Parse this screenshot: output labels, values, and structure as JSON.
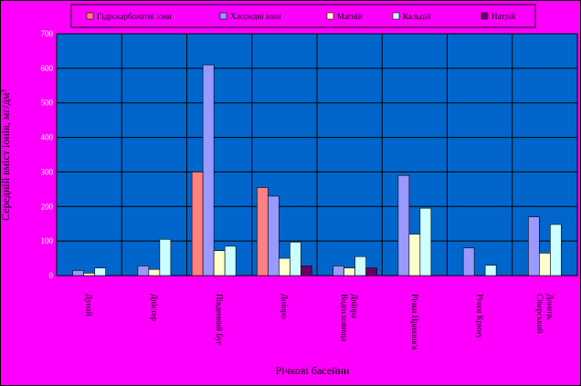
{
  "chart_data": {
    "type": "bar",
    "title": "",
    "xlabel": "Річкові басейни",
    "ylabel": "Середній вміст іонів, мг/дм³",
    "ylim": [
      0,
      700
    ],
    "yticks": [
      0,
      100,
      200,
      300,
      400,
      500,
      600,
      700
    ],
    "grid": true,
    "legend_position": "top",
    "categories": [
      [
        "Дунай"
      ],
      [
        "Дністер"
      ],
      [
        "Південний Буг"
      ],
      [
        "Дніпро"
      ],
      [
        "Водосховища",
        "Дніпра"
      ],
      [
        "Річки Приазов'я"
      ],
      [
        "Річки Криму"
      ],
      [
        "Сіверський",
        "Донець"
      ]
    ],
    "series": [
      {
        "name": "Гідрокарбонатні іони",
        "color": "#ff8080",
        "values": [
          0,
          0,
          300,
          255,
          0,
          0,
          0,
          0
        ]
      },
      {
        "name": "Хлоридні іони",
        "color": "#9999ff",
        "values": [
          15,
          28,
          610,
          230,
          28,
          290,
          80,
          170
        ]
      },
      {
        "name": "Магній",
        "color": "#ffffcc",
        "values": [
          7,
          18,
          72,
          50,
          22,
          120,
          0,
          65
        ]
      },
      {
        "name": "Кальцій",
        "color": "#ccffff",
        "values": [
          22,
          105,
          85,
          97,
          55,
          195,
          30,
          148
        ]
      },
      {
        "name": "Натрій",
        "color": "#660066",
        "values": [
          0,
          0,
          0,
          28,
          22,
          0,
          0,
          0
        ]
      }
    ],
    "colors": {
      "background": "#ff00ff",
      "plot_area": "#0066cc",
      "grid": "#000000",
      "axis_text": "#ffffff"
    }
  }
}
